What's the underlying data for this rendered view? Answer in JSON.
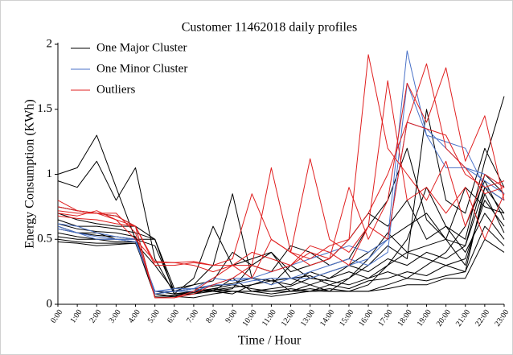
{
  "chart_data": {
    "type": "line",
    "title": "Customer 11462018 daily profiles",
    "xlabel": "Time / Hour",
    "ylabel": "Energy Consumption (KWh)",
    "categories": [
      "0:00",
      "1:00",
      "2:00",
      "3:00",
      "4:00",
      "5:00",
      "6:00",
      "7:00",
      "8:00",
      "9:00",
      "10:00",
      "11:00",
      "12:00",
      "13:00",
      "14:00",
      "15:00",
      "16:00",
      "17:00",
      "18:00",
      "19:00",
      "20:00",
      "21:00",
      "22:00",
      "23:00"
    ],
    "ylim": [
      0,
      2
    ],
    "yticks": [
      0,
      0.5,
      1,
      1.5,
      2
    ],
    "grid": false,
    "legend": "upper left",
    "series": [
      {
        "name": "One Major Cluster",
        "color": "#000000",
        "profiles": [
          [
            0.55,
            0.52,
            0.5,
            0.5,
            0.5,
            0.1,
            0.08,
            0.1,
            0.12,
            0.15,
            0.12,
            0.1,
            0.12,
            0.1,
            0.15,
            0.12,
            0.18,
            0.2,
            0.25,
            0.22,
            0.3,
            0.35,
            0.8,
            0.6
          ],
          [
            0.6,
            0.55,
            0.55,
            0.5,
            0.48,
            0.06,
            0.07,
            0.08,
            0.1,
            0.2,
            0.1,
            0.08,
            0.1,
            0.12,
            0.1,
            0.1,
            0.15,
            0.3,
            0.4,
            0.35,
            0.3,
            0.25,
            0.9,
            0.7
          ],
          [
            1.0,
            1.05,
            1.3,
            0.9,
            0.5,
            0.45,
            0.1,
            0.15,
            0.3,
            0.85,
            0.2,
            0.15,
            0.3,
            0.2,
            0.25,
            0.3,
            0.4,
            0.5,
            0.6,
            0.7,
            0.5,
            0.45,
            1.0,
            0.85
          ],
          [
            0.5,
            0.48,
            0.47,
            0.47,
            0.47,
            0.3,
            0.1,
            0.12,
            0.1,
            0.08,
            0.15,
            0.2,
            0.1,
            0.15,
            0.2,
            0.25,
            0.2,
            0.3,
            0.5,
            0.9,
            0.6,
            0.4,
            0.7,
            0.5
          ],
          [
            0.65,
            0.6,
            0.6,
            0.58,
            0.55,
            0.5,
            0.08,
            0.08,
            0.12,
            0.1,
            0.1,
            0.12,
            0.14,
            0.2,
            0.18,
            0.15,
            0.2,
            0.25,
            0.2,
            0.3,
            0.4,
            0.6,
            0.95,
            0.65
          ],
          [
            0.7,
            0.65,
            0.62,
            0.6,
            0.6,
            0.05,
            0.06,
            0.1,
            0.1,
            0.12,
            0.3,
            0.4,
            0.2,
            0.15,
            0.1,
            0.2,
            0.3,
            0.45,
            0.35,
            1.5,
            0.8,
            0.7,
            1.2,
            0.9
          ],
          [
            0.48,
            0.47,
            0.45,
            0.46,
            0.47,
            0.1,
            0.1,
            0.1,
            0.1,
            0.1,
            0.1,
            0.1,
            0.1,
            0.1,
            0.1,
            0.1,
            0.1,
            0.12,
            0.15,
            0.15,
            0.2,
            0.2,
            0.5,
            0.4
          ],
          [
            0.95,
            0.9,
            1.1,
            0.8,
            1.05,
            0.35,
            0.08,
            0.2,
            0.6,
            0.3,
            0.35,
            0.4,
            0.25,
            0.3,
            0.35,
            0.5,
            0.7,
            0.6,
            0.8,
            0.5,
            0.6,
            0.5,
            1.1,
            1.6
          ],
          [
            0.58,
            0.55,
            0.53,
            0.52,
            0.5,
            0.5,
            0.08,
            0.09,
            0.11,
            0.13,
            0.15,
            0.18,
            0.2,
            0.22,
            0.15,
            0.2,
            0.35,
            0.55,
            0.4,
            0.45,
            0.5,
            0.3,
            0.85,
            0.55
          ],
          [
            0.52,
            0.5,
            0.5,
            0.48,
            0.48,
            0.08,
            0.06,
            0.05,
            0.08,
            0.1,
            0.08,
            0.06,
            0.08,
            0.1,
            0.12,
            0.1,
            0.1,
            0.15,
            0.2,
            0.18,
            0.22,
            0.25,
            0.6,
            0.45
          ],
          [
            0.75,
            0.72,
            0.7,
            0.68,
            0.6,
            0.5,
            0.12,
            0.15,
            0.18,
            0.4,
            0.3,
            0.25,
            0.45,
            0.4,
            0.3,
            0.35,
            0.6,
            0.8,
            1.2,
            0.65,
            0.5,
            0.9,
            0.75,
            0.7
          ],
          [
            0.62,
            0.58,
            0.56,
            0.55,
            0.52,
            0.08,
            0.1,
            0.12,
            0.14,
            0.16,
            0.2,
            0.18,
            0.15,
            0.25,
            0.2,
            0.3,
            0.25,
            0.35,
            0.3,
            0.4,
            0.35,
            0.45,
            0.9,
            0.8
          ]
        ]
      },
      {
        "name": "One Minor Cluster",
        "color": "#4a72c8",
        "profiles": [
          [
            0.6,
            0.55,
            0.5,
            0.5,
            0.48,
            0.1,
            0.1,
            0.12,
            0.15,
            0.2,
            0.2,
            0.15,
            0.2,
            0.2,
            0.25,
            0.3,
            0.35,
            0.5,
            1.95,
            1.3,
            1.05,
            1.05,
            0.95,
            0.85
          ],
          [
            0.58,
            0.55,
            0.52,
            0.5,
            0.5,
            0.08,
            0.1,
            0.1,
            0.15,
            0.15,
            0.18,
            0.2,
            0.2,
            0.25,
            0.3,
            0.35,
            0.3,
            0.4,
            1.7,
            1.3,
            1.25,
            1.2,
            0.9,
            0.8
          ],
          [
            0.62,
            0.6,
            0.55,
            0.52,
            0.5,
            0.1,
            0.12,
            0.12,
            0.2,
            0.18,
            0.2,
            0.25,
            0.3,
            0.35,
            0.4,
            0.45,
            0.4,
            0.5,
            1.4,
            1.35,
            1.2,
            1.05,
            1.0,
            0.9
          ]
        ]
      },
      {
        "name": "Outliers",
        "color": "#e02020",
        "profiles": [
          [
            0.8,
            0.72,
            0.7,
            0.65,
            0.5,
            0.33,
            0.32,
            0.33,
            0.3,
            0.35,
            0.85,
            0.5,
            0.4,
            0.35,
            0.45,
            0.5,
            1.92,
            1.2,
            1.0,
            0.8,
            1.1,
            0.6,
            1.0,
            0.9
          ],
          [
            0.7,
            0.68,
            0.72,
            0.65,
            0.6,
            0.3,
            0.3,
            0.32,
            0.3,
            0.3,
            0.3,
            1.05,
            0.4,
            1.12,
            0.5,
            0.4,
            0.6,
            1.72,
            0.8,
            0.9,
            0.7,
            0.9,
            0.5,
            0.85
          ],
          [
            0.75,
            0.72,
            0.7,
            0.7,
            0.55,
            0.05,
            0.05,
            0.08,
            0.15,
            0.2,
            0.3,
            0.25,
            0.3,
            0.4,
            0.35,
            0.9,
            0.5,
            0.8,
            1.7,
            1.4,
            1.82,
            1.1,
            1.45,
            0.8
          ],
          [
            0.68,
            0.66,
            0.65,
            0.62,
            0.6,
            0.05,
            0.05,
            0.1,
            0.2,
            0.3,
            0.2,
            0.5,
            0.4,
            0.3,
            0.35,
            0.5,
            0.7,
            1.0,
            1.4,
            1.85,
            1.2,
            1.05,
            0.85,
            0.9
          ],
          [
            0.72,
            0.7,
            0.7,
            0.68,
            0.6,
            0.32,
            0.32,
            0.3,
            0.25,
            0.3,
            0.4,
            0.35,
            0.3,
            0.45,
            0.4,
            0.3,
            0.6,
            0.5,
            1.4,
            1.35,
            1.3,
            1.0,
            0.9,
            0.95
          ]
        ]
      }
    ]
  }
}
